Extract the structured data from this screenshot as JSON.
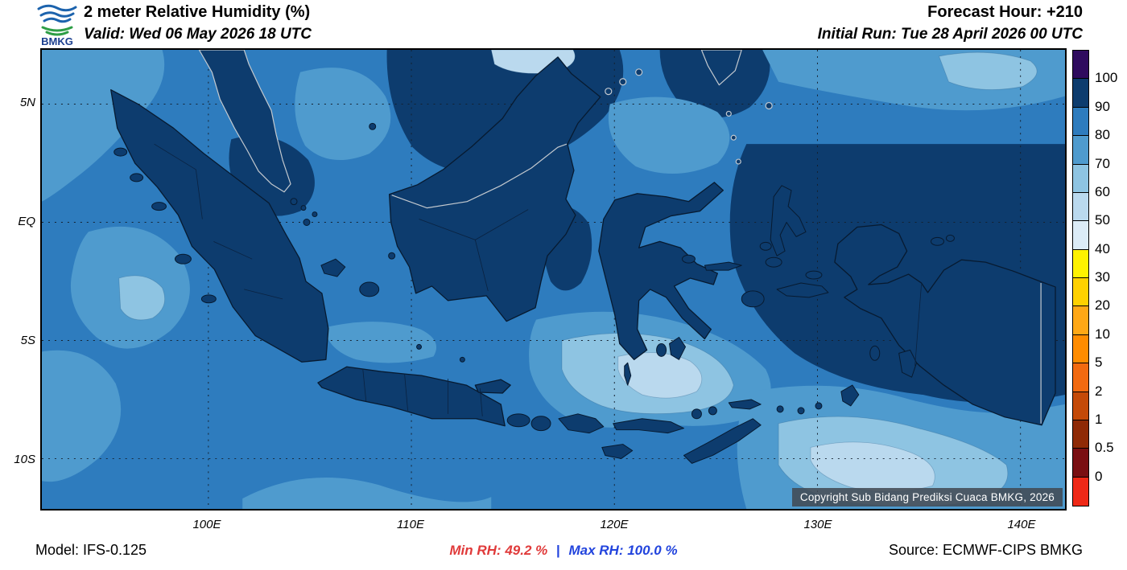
{
  "header": {
    "logo_text": "BMKG",
    "title": "2 meter Relative Humidity (%)",
    "valid_line": "Valid: Wed 06 May 2026 18 UTC",
    "forecast_hour": "Forecast Hour: +210",
    "initial_run": "Initial Run: Tue 28 April 2026 00 UTC"
  },
  "map": {
    "lat_labels": [
      "5N",
      "EQ",
      "5S",
      "10S"
    ],
    "lon_labels": [
      "100E",
      "110E",
      "120E",
      "130E",
      "140E"
    ],
    "copyright": "Copyright Sub Bidang Prediksi Cuaca BMKG, 2026"
  },
  "colorbar": {
    "labels": [
      "100",
      "90",
      "80",
      "70",
      "60",
      "50",
      "40",
      "30",
      "20",
      "10",
      "5",
      "2",
      "1",
      "0.5",
      "0"
    ],
    "colors": [
      "#2f0b5e",
      "#0d3c6e",
      "#2e7cbe",
      "#4f9bce",
      "#8ec4e2",
      "#bad9ee",
      "#dcecf7",
      "#fef200",
      "#ffd100",
      "#ffa816",
      "#ff8c00",
      "#f26a10",
      "#c44a08",
      "#8f2a06",
      "#7a0f12",
      "#ef2917"
    ]
  },
  "footer": {
    "model": "Model: IFS-0.125",
    "min_rh": "Min RH:  49.2 %",
    "separator": "|",
    "max_rh": "Max RH: 100.0 %",
    "source": "Source: ECMWF-CIPS BMKG",
    "min_color": "#e03a3a",
    "max_color": "#2244dd"
  }
}
